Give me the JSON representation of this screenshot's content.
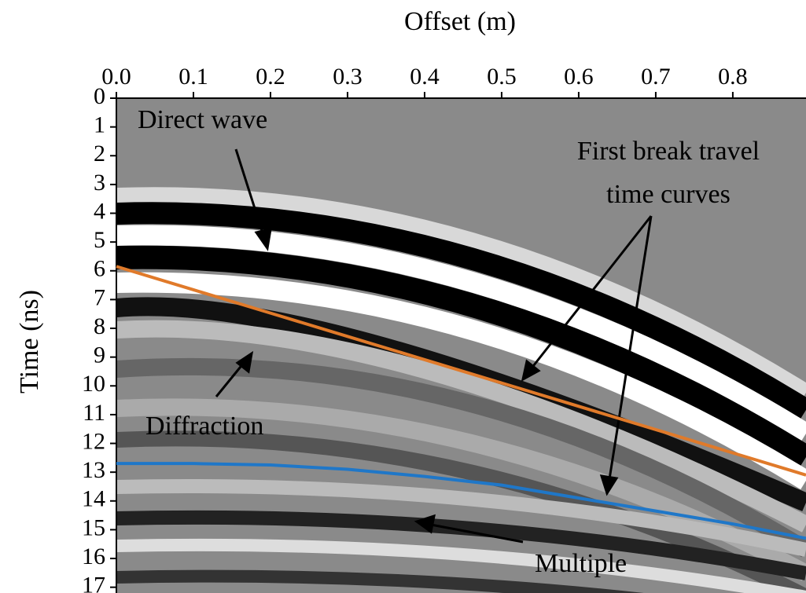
{
  "chart_data": {
    "type": "line",
    "title": "Offset (m)",
    "y_label": "Time (ns)",
    "x": [
      0,
      0.1,
      0.2,
      0.3,
      0.4,
      0.5,
      0.6,
      0.7,
      0.8,
      0.895
    ],
    "series": [
      {
        "color": "#e07a2a",
        "values": [
          5.85,
          6.66,
          7.47,
          8.28,
          9.09,
          9.9,
          10.71,
          11.52,
          12.33,
          13.1
        ]
      },
      {
        "color": "#1f77c8",
        "values": [
          12.7,
          12.7,
          12.75,
          12.9,
          13.15,
          13.45,
          13.9,
          14.35,
          14.8,
          15.3
        ]
      }
    ],
    "xlim": [
      0,
      0.895
    ],
    "ylim": [
      0,
      17.2
    ],
    "y_inverted": true,
    "xticks": [
      {
        "value": 0,
        "label": "0.0"
      },
      0.1,
      0.2,
      0.3,
      0.4,
      0.5,
      0.6,
      0.7,
      0.8
    ],
    "yticks": [
      0,
      1,
      2,
      3,
      4,
      5,
      6,
      7,
      8,
      9,
      10,
      11,
      12,
      13,
      14,
      15,
      16,
      17
    ],
    "annotations": [
      {
        "text": [
          "Direct wave"
        ]
      },
      {
        "text": [
          "First break travel",
          "time curves"
        ]
      },
      {
        "text": [
          "Diffraction"
        ]
      },
      {
        "text": [
          "Multiple"
        ]
      }
    ]
  }
}
